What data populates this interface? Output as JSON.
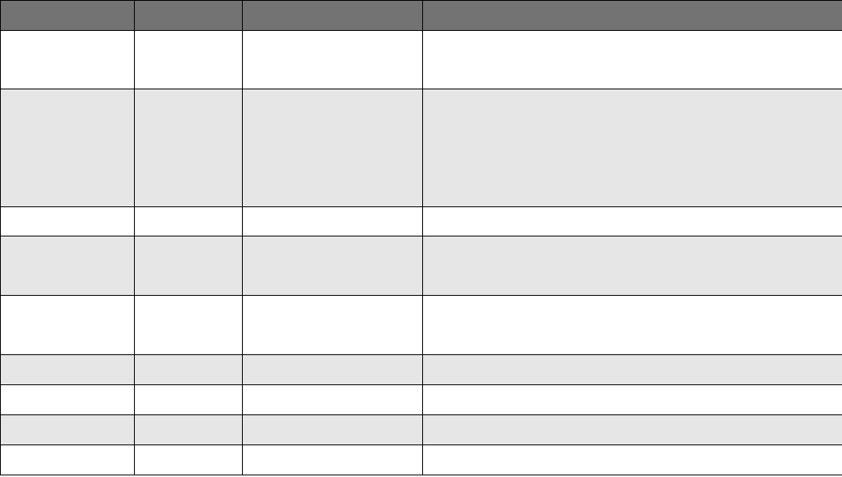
{
  "table": {
    "header_color": "#737373",
    "stripe_color": "#e6e6e6",
    "columns": [
      "",
      "",
      "",
      ""
    ],
    "rows": [
      [
        "",
        "",
        "",
        ""
      ],
      [
        "",
        "",
        "",
        ""
      ],
      [
        "",
        "",
        "",
        ""
      ],
      [
        "",
        "",
        "",
        ""
      ],
      [
        "",
        "",
        "",
        ""
      ],
      [
        "",
        "",
        "",
        ""
      ],
      [
        "",
        "",
        "",
        ""
      ],
      [
        "",
        "",
        "",
        ""
      ],
      [
        "",
        "",
        "",
        ""
      ]
    ]
  }
}
